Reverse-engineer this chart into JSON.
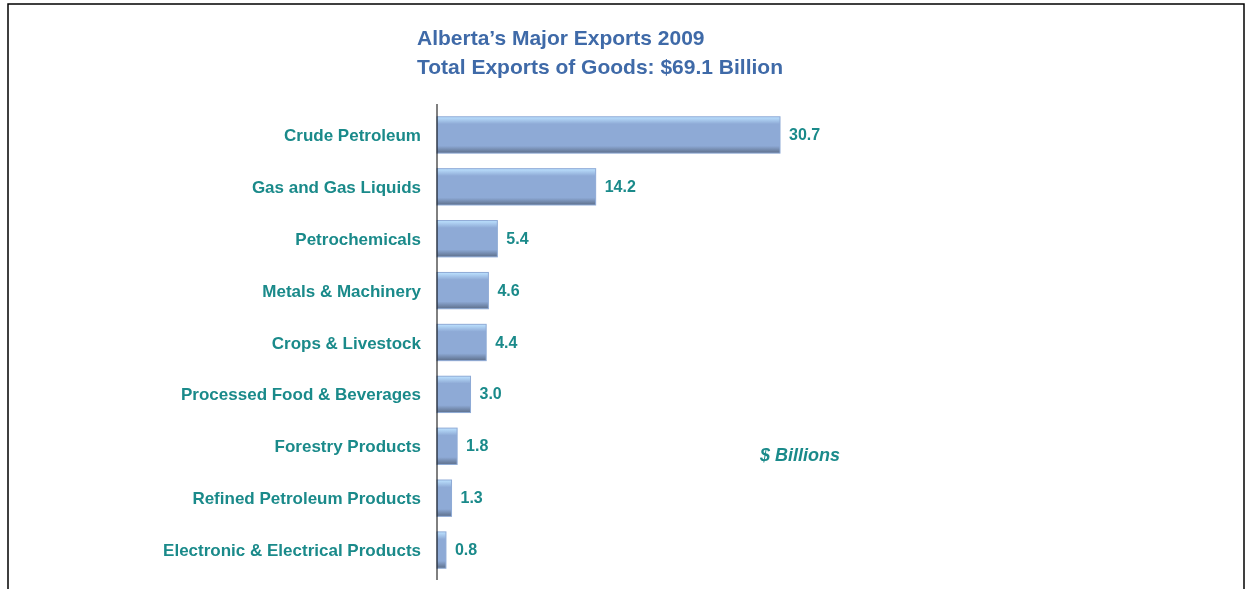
{
  "chart_data": {
    "type": "bar",
    "orientation": "horizontal",
    "title": "Alberta’s Major Exports 2009",
    "subtitle": "Total Exports of Goods:  $69.1 Billion",
    "categories": [
      "Crude Petroleum",
      "Gas and Gas Liquids",
      "Petrochemicals",
      "Metals & Machinery",
      "Crops & Livestock",
      "Processed Food & Beverages",
      "Forestry  Products",
      "Refined Petroleum Products",
      "Electronic & Electrical Products"
    ],
    "values": [
      30.7,
      14.2,
      5.4,
      4.6,
      4.4,
      3.0,
      1.8,
      1.3,
      0.8
    ],
    "value_labels": [
      "30.7",
      "14.2",
      "5.4",
      "4.6",
      "4.4",
      "3.0",
      "1.8",
      "1.3",
      "0.8"
    ],
    "color": "#8eaad6",
    "annotations": [
      "$ Billions"
    ]
  }
}
